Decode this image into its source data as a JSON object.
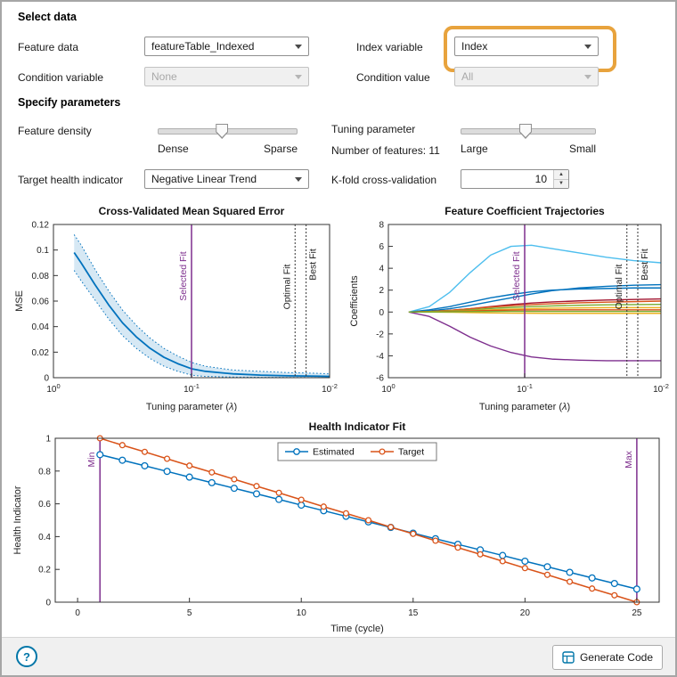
{
  "select_data": {
    "heading": "Select data",
    "feature_data_label": "Feature data",
    "feature_data_value": "featureTable_Indexed",
    "index_variable_label": "Index variable",
    "index_variable_value": "Index",
    "condition_variable_label": "Condition variable",
    "condition_variable_value": "None",
    "condition_value_label": "Condition value",
    "condition_value_value": "All"
  },
  "specify_parameters": {
    "heading": "Specify parameters",
    "feature_density_label": "Feature density",
    "feature_density_min": "Dense",
    "feature_density_max": "Sparse",
    "tuning_parameter_label": "Tuning parameter",
    "number_of_features_text": "Number of features: 11",
    "tuning_min": "Large",
    "tuning_max": "Small",
    "target_health_label": "Target health indicator",
    "target_health_value": "Negative Linear Trend",
    "kfold_label": "K-fold cross-validation",
    "kfold_value": "10"
  },
  "sliders": {
    "feature_density": 0.46,
    "tuning": 0.48
  },
  "footer": {
    "help_label": "?",
    "generate_code_label": "Generate Code"
  },
  "colors": {
    "highlight": "#e8a33d",
    "purple": "#7E2F8E",
    "blue": "#0072BD",
    "orange": "#D95319",
    "help_blue": "#0076A8"
  },
  "chart_data": [
    {
      "type": "line",
      "title": "Cross-Validated Mean Squared Error",
      "xlabel": "Tuning parameter (λ)",
      "ylabel": "MSE",
      "x_scale": "log10_reversed",
      "xlim_log": [
        0,
        -2
      ],
      "xtick_exponents": [
        0,
        -1,
        -2
      ],
      "ylim": [
        0,
        0.12
      ],
      "yticks": [
        0,
        0.02,
        0.04,
        0.06,
        0.08,
        0.1,
        0.12
      ],
      "log_x": [
        -0.15,
        -0.2,
        -0.3,
        -0.4,
        -0.5,
        -0.6,
        -0.7,
        -0.8,
        -0.9,
        -1.0,
        -1.1,
        -1.3,
        -1.5,
        -1.7,
        -1.9,
        -2.0
      ],
      "mse": [
        0.098,
        0.09,
        0.073,
        0.057,
        0.043,
        0.032,
        0.023,
        0.016,
        0.011,
        0.007,
        0.005,
        0.003,
        0.002,
        0.0015,
        0.0012,
        0.001
      ],
      "upper": [
        0.112,
        0.104,
        0.085,
        0.068,
        0.053,
        0.041,
        0.031,
        0.023,
        0.017,
        0.012,
        0.009,
        0.006,
        0.005,
        0.004,
        0.0035,
        0.003
      ],
      "lower": [
        0.084,
        0.076,
        0.061,
        0.046,
        0.033,
        0.023,
        0.015,
        0.009,
        0.005,
        0.002,
        0.001,
        0.0005,
        0.0003,
        0.0002,
        0.0001,
        0.0001
      ],
      "line_color": "#0072BD",
      "selected_fit_log": -1,
      "optimal_fit_log": -1.75,
      "best_fit_log": -1.83,
      "selected_label": "Selected Fit",
      "optimal_label": "Optimal Fit",
      "best_label": "Best Fit"
    },
    {
      "type": "line",
      "title": "Feature Coefficient Trajectories",
      "xlabel": "Tuning parameter (λ)",
      "ylabel": "Coefficients",
      "x_scale": "log10_reversed",
      "xlim_log": [
        0,
        -2
      ],
      "xtick_exponents": [
        0,
        -1,
        -2
      ],
      "ylim": [
        -6,
        8
      ],
      "yticks": [
        -6,
        -4,
        -2,
        0,
        2,
        4,
        6,
        8
      ],
      "log_x": [
        -0.15,
        -0.3,
        -0.45,
        -0.6,
        -0.75,
        -0.9,
        -1.05,
        -1.2,
        -1.4,
        -1.6,
        -1.8,
        -2.0
      ],
      "series": [
        {
          "color": "#4DBEEE",
          "values": [
            0,
            0.5,
            1.8,
            3.6,
            5.2,
            6.0,
            6.1,
            5.8,
            5.4,
            5.0,
            4.7,
            4.5
          ]
        },
        {
          "color": "#7E2F8E",
          "values": [
            0,
            -0.4,
            -1.3,
            -2.3,
            -3.1,
            -3.7,
            -4.1,
            -4.3,
            -4.4,
            -4.45,
            -4.45,
            -4.45
          ]
        },
        {
          "color": "#0072BD",
          "values": [
            0,
            0.1,
            0.3,
            0.6,
            0.95,
            1.3,
            1.65,
            1.95,
            2.2,
            2.35,
            2.45,
            2.5
          ]
        },
        {
          "color": "#0072BD",
          "values": [
            0,
            0.2,
            0.5,
            0.9,
            1.3,
            1.6,
            1.85,
            2.0,
            2.1,
            2.15,
            2.2,
            2.2
          ]
        },
        {
          "color": "#A2142F",
          "values": [
            0,
            0.05,
            0.15,
            0.3,
            0.5,
            0.68,
            0.82,
            0.92,
            1.02,
            1.1,
            1.15,
            1.2
          ]
        },
        {
          "color": "#D95319",
          "values": [
            0,
            0.05,
            0.15,
            0.3,
            0.45,
            0.58,
            0.68,
            0.76,
            0.84,
            0.9,
            0.95,
            1.0
          ]
        },
        {
          "color": "#77AC30",
          "values": [
            0,
            0.03,
            0.1,
            0.2,
            0.32,
            0.42,
            0.5,
            0.56,
            0.62,
            0.66,
            0.68,
            0.7
          ]
        },
        {
          "color": "#EDB120",
          "values": [
            0,
            0.02,
            0.07,
            0.13,
            0.2,
            0.26,
            0.31,
            0.35,
            0.38,
            0.4,
            0.4,
            0.4
          ]
        },
        {
          "color": "#D95319",
          "values": [
            0,
            0,
            0.05,
            0.1,
            0.14,
            0.17,
            0.19,
            0.2,
            0.2,
            0.2,
            0.2,
            0.2
          ]
        },
        {
          "color": "#EDB120",
          "values": [
            0,
            0,
            -0.02,
            -0.05,
            -0.08,
            -0.1,
            -0.11,
            -0.12,
            -0.12,
            -0.12,
            -0.12,
            -0.12
          ]
        },
        {
          "color": "#77AC30",
          "values": [
            0,
            0,
            0.02,
            0.04,
            0.05,
            0.06,
            0.06,
            0.06,
            0.06,
            0.06,
            0.06,
            0.06
          ]
        }
      ],
      "selected_fit_log": -1,
      "optimal_fit_log": -1.75,
      "best_fit_log": -1.83,
      "selected_label": "Selected Fit",
      "optimal_label": "Optimal Fit",
      "best_label": "Best Fit"
    },
    {
      "type": "line",
      "title": "Health Indicator Fit",
      "xlabel": "Time (cycle)",
      "ylabel": "Health Indicator",
      "xlim": [
        -1,
        26
      ],
      "xticks": [
        0,
        5,
        10,
        15,
        20,
        25
      ],
      "ylim": [
        0,
        1
      ],
      "yticks": [
        0,
        0.2,
        0.4,
        0.6,
        0.8,
        1
      ],
      "series": [
        {
          "name": "Estimated",
          "color": "#0072BD",
          "marker": "circle",
          "x": [
            1,
            2,
            3,
            4,
            5,
            6,
            7,
            8,
            9,
            10,
            11,
            12,
            13,
            14,
            15,
            16,
            17,
            18,
            19,
            20,
            21,
            22,
            23,
            24,
            25
          ],
          "y": [
            0.9,
            0.866,
            0.832,
            0.798,
            0.763,
            0.729,
            0.695,
            0.661,
            0.627,
            0.592,
            0.558,
            0.524,
            0.49,
            0.456,
            0.421,
            0.387,
            0.353,
            0.319,
            0.285,
            0.25,
            0.216,
            0.182,
            0.148,
            0.114,
            0.08
          ]
        },
        {
          "name": "Target",
          "color": "#D95319",
          "marker": "circle",
          "x": [
            1,
            2,
            3,
            4,
            5,
            6,
            7,
            8,
            9,
            10,
            11,
            12,
            13,
            14,
            15,
            16,
            17,
            18,
            19,
            20,
            21,
            22,
            23,
            24,
            25
          ],
          "y": [
            1,
            0.958,
            0.917,
            0.875,
            0.833,
            0.792,
            0.75,
            0.708,
            0.667,
            0.625,
            0.583,
            0.542,
            0.5,
            0.458,
            0.417,
            0.375,
            0.333,
            0.292,
            0.25,
            0.208,
            0.167,
            0.125,
            0.083,
            0.042,
            0
          ]
        }
      ],
      "min_line_x": 1,
      "max_line_x": 25,
      "min_label": "Min",
      "max_label": "Max",
      "legend_position": "top-center"
    }
  ]
}
